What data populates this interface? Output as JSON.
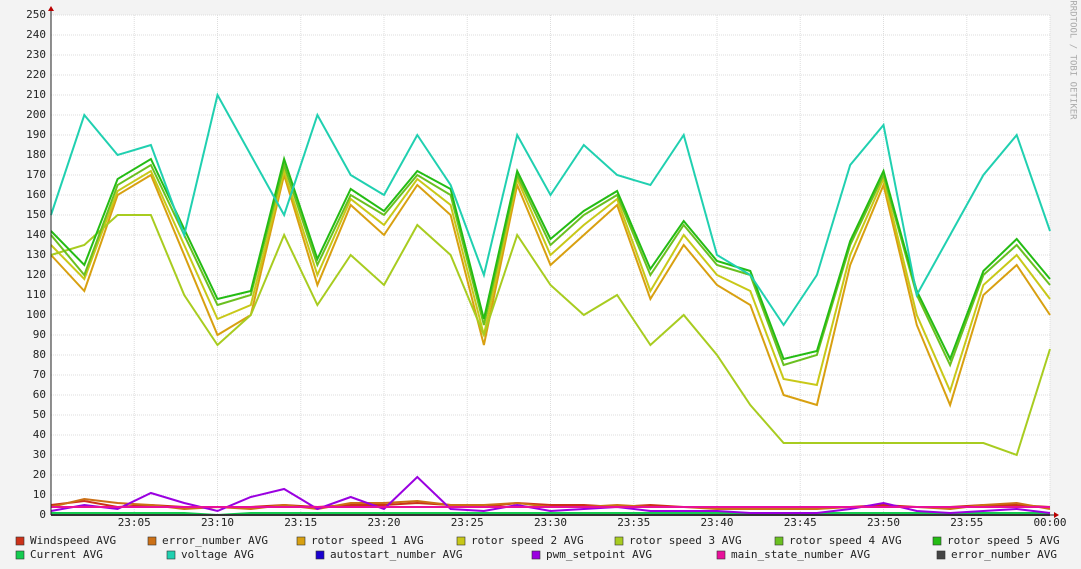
{
  "chart_data": {
    "type": "line",
    "watermark": "RRDTOOL / TOBI OETIKER",
    "x": [
      "23:00",
      "23:02",
      "23:04",
      "23:06",
      "23:08",
      "23:10",
      "23:12",
      "23:14",
      "23:16",
      "23:18",
      "23:20",
      "23:22",
      "23:24",
      "23:26",
      "23:28",
      "23:30",
      "23:32",
      "23:34",
      "23:36",
      "23:38",
      "23:40",
      "23:42",
      "23:44",
      "23:46",
      "23:48",
      "23:50",
      "23:52",
      "23:54",
      "23:56",
      "23:58",
      "00:00"
    ],
    "xlim": [
      "23:00",
      "00:00"
    ],
    "xticks": [
      "23:05",
      "23:10",
      "23:15",
      "23:20",
      "23:25",
      "23:30",
      "23:35",
      "23:40",
      "23:45",
      "23:50",
      "23:55",
      "00:00"
    ],
    "ylim": [
      0,
      250
    ],
    "yticks": [
      0,
      10,
      20,
      30,
      40,
      50,
      60,
      70,
      80,
      90,
      100,
      110,
      120,
      130,
      140,
      150,
      160,
      170,
      180,
      190,
      200,
      210,
      220,
      230,
      240,
      250
    ],
    "grid": true,
    "series": [
      {
        "name": "Windspeed AVG",
        "color": "#cc3118",
        "values": [
          5,
          7,
          4,
          5,
          4,
          4,
          4,
          5,
          4,
          5,
          5,
          6,
          5,
          4,
          6,
          5,
          5,
          4,
          5,
          4,
          4,
          4,
          3,
          4,
          4,
          5,
          4,
          4,
          5,
          5,
          4
        ]
      },
      {
        "name": "error_number AVG",
        "color": "#cc7016",
        "values": [
          4,
          8,
          6,
          5,
          3,
          4,
          3,
          5,
          3,
          6,
          6,
          7,
          5,
          5,
          6,
          4,
          4,
          5,
          4,
          4,
          3,
          3,
          3,
          3,
          4,
          4,
          4,
          3,
          5,
          6,
          3
        ]
      },
      {
        "name": "rotor speed 1 AVG",
        "color": "#d8a010",
        "values": [
          130,
          112,
          160,
          170,
          130,
          90,
          100,
          170,
          115,
          155,
          140,
          165,
          150,
          85,
          165,
          125,
          140,
          155,
          108,
          135,
          115,
          105,
          60,
          55,
          125,
          165,
          95,
          55,
          110,
          125,
          100
        ]
      },
      {
        "name": "rotor speed 2 AVG",
        "color": "#c8c818",
        "values": [
          135,
          118,
          162,
          172,
          135,
          98,
          105,
          172,
          120,
          158,
          145,
          168,
          155,
          90,
          168,
          130,
          145,
          158,
          112,
          140,
          120,
          112,
          68,
          65,
          130,
          168,
          100,
          62,
          115,
          130,
          108
        ]
      },
      {
        "name": "rotor speed 3 AVG",
        "color": "#a8cc20",
        "values": [
          130,
          135,
          150,
          150,
          110,
          85,
          100,
          140,
          105,
          130,
          115,
          145,
          130,
          90,
          140,
          115,
          100,
          110,
          85,
          100,
          80,
          55,
          36,
          36,
          36,
          36,
          36,
          36,
          36,
          30,
          83
        ]
      },
      {
        "name": "rotor speed 4 AVG",
        "color": "#6ac020",
        "values": [
          140,
          120,
          165,
          175,
          140,
          105,
          110,
          175,
          125,
          160,
          150,
          170,
          160,
          95,
          170,
          135,
          150,
          160,
          120,
          145,
          125,
          120,
          75,
          80,
          135,
          170,
          110,
          75,
          120,
          135,
          115
        ]
      },
      {
        "name": "rotor speed 5 AVG",
        "color": "#24bc14",
        "values": [
          142,
          125,
          168,
          178,
          143,
          108,
          112,
          178,
          128,
          163,
          152,
          172,
          163,
          98,
          172,
          138,
          152,
          162,
          123,
          147,
          127,
          122,
          78,
          82,
          137,
          172,
          112,
          78,
          122,
          138,
          118
        ]
      },
      {
        "name": "Current AVG",
        "color": "#14cc50",
        "values": [
          1,
          1,
          1,
          1,
          1,
          0,
          1,
          1,
          1,
          1,
          1,
          1,
          1,
          1,
          1,
          1,
          1,
          1,
          1,
          1,
          1,
          1,
          1,
          1,
          1,
          1,
          1,
          1,
          1,
          1,
          1
        ]
      },
      {
        "name": "voltage AVG",
        "color": "#20d0b0",
        "values": [
          150,
          200,
          180,
          185,
          140,
          210,
          180,
          150,
          200,
          170,
          160,
          190,
          165,
          120,
          190,
          160,
          185,
          170,
          165,
          190,
          130,
          120,
          95,
          120,
          175,
          195,
          110,
          140,
          170,
          190,
          142
        ]
      },
      {
        "name": "autostart_number AVG",
        "color": "#1a00d0",
        "values": [
          0,
          0,
          0,
          0,
          0,
          0,
          0,
          0,
          0,
          0,
          0,
          0,
          0,
          0,
          0,
          0,
          0,
          0,
          0,
          0,
          0,
          0,
          0,
          0,
          0,
          0,
          0,
          0,
          0,
          0,
          0
        ]
      },
      {
        "name": "pwm_setpoint AVG",
        "color": "#9a00e0",
        "values": [
          2,
          5,
          3,
          11,
          6,
          2,
          9,
          13,
          3,
          9,
          3,
          19,
          3,
          2,
          5,
          2,
          3,
          4,
          2,
          2,
          2,
          1,
          1,
          1,
          3,
          6,
          2,
          1,
          2,
          3,
          1
        ]
      },
      {
        "name": "main_state_number AVG",
        "color": "#e8109a",
        "values": [
          4,
          4,
          4,
          4,
          4,
          4,
          4,
          4,
          4,
          4,
          4,
          4,
          4,
          4,
          4,
          4,
          4,
          4,
          4,
          4,
          4,
          4,
          4,
          4,
          4,
          4,
          4,
          4,
          4,
          4,
          4
        ]
      },
      {
        "name": "error_number AVG",
        "color": "#444444",
        "values": [
          0,
          0,
          0,
          0,
          0,
          0,
          0,
          0,
          0,
          0,
          0,
          0,
          0,
          0,
          0,
          0,
          0,
          0,
          0,
          0,
          0,
          0,
          0,
          0,
          0,
          0,
          0,
          0,
          0,
          0,
          0
        ]
      }
    ]
  }
}
